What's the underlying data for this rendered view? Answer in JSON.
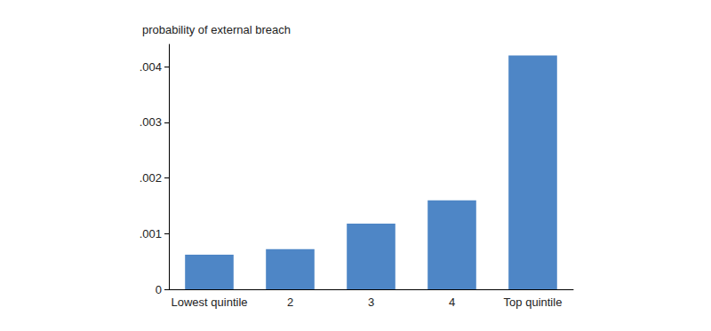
{
  "chart_data": {
    "type": "bar",
    "y_label": "probability of external breach",
    "categories": [
      "Lowest quintile",
      "2",
      "3",
      "4",
      "Top quintile"
    ],
    "values": [
      0.00062,
      0.00072,
      0.00118,
      0.0016,
      0.0042
    ],
    "color": "#4e86c6",
    "ylim": [
      0,
      0.0044
    ],
    "yticks": [
      0,
      {
        "value": 0.001,
        "label": ".001"
      },
      {
        "value": 0.002,
        "label": ".002"
      },
      {
        "value": 0.003,
        "label": ".003"
      },
      {
        "value": 0.004,
        "label": ".004"
      }
    ],
    "grid": false
  }
}
